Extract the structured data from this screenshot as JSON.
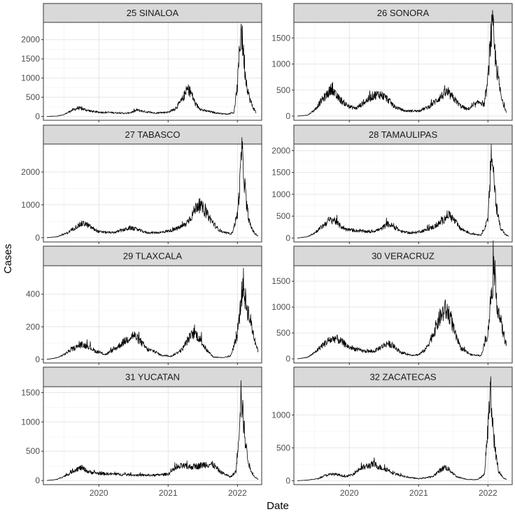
{
  "chart_data": {
    "type": "line",
    "xlabel": "Date",
    "ylabel": "Cases",
    "x_ticks": [
      {
        "label": "2020",
        "value": 2020.0
      },
      {
        "label": "2021",
        "value": 2021.0
      },
      {
        "label": "2022",
        "value": 2022.0
      }
    ],
    "xlim": [
      2019.2,
      2022.35
    ],
    "grid": true,
    "panels": [
      {
        "title": "25 SINALOA",
        "ylim": [
          -100,
          2450
        ],
        "yticks": [
          0,
          500,
          1000,
          1500,
          2000
        ],
        "points": [
          [
            2019.25,
            0
          ],
          [
            2019.4,
            10
          ],
          [
            2019.5,
            50
          ],
          [
            2019.6,
            150
          ],
          [
            2019.7,
            220
          ],
          [
            2019.8,
            180
          ],
          [
            2019.9,
            130
          ],
          [
            2020.0,
            110
          ],
          [
            2020.2,
            100
          ],
          [
            2020.4,
            80
          ],
          [
            2020.5,
            120
          ],
          [
            2020.55,
            170
          ],
          [
            2020.65,
            130
          ],
          [
            2020.8,
            90
          ],
          [
            2021.0,
            110
          ],
          [
            2021.1,
            200
          ],
          [
            2021.2,
            420
          ],
          [
            2021.28,
            720
          ],
          [
            2021.33,
            620
          ],
          [
            2021.4,
            300
          ],
          [
            2021.5,
            160
          ],
          [
            2021.7,
            90
          ],
          [
            2021.85,
            60
          ],
          [
            2021.95,
            100
          ],
          [
            2022.0,
            800
          ],
          [
            2022.03,
            1700
          ],
          [
            2022.05,
            2350
          ],
          [
            2022.08,
            1800
          ],
          [
            2022.12,
            1000
          ],
          [
            2022.17,
            500
          ],
          [
            2022.22,
            250
          ],
          [
            2022.27,
            100
          ]
        ]
      },
      {
        "title": "26 SONORA",
        "ylim": [
          -80,
          1800
        ],
        "yticks": [
          0,
          500,
          1000,
          1500
        ],
        "points": [
          [
            2019.25,
            0
          ],
          [
            2019.4,
            20
          ],
          [
            2019.5,
            120
          ],
          [
            2019.6,
            300
          ],
          [
            2019.7,
            450
          ],
          [
            2019.75,
            550
          ],
          [
            2019.8,
            400
          ],
          [
            2019.9,
            280
          ],
          [
            2020.0,
            180
          ],
          [
            2020.1,
            150
          ],
          [
            2020.2,
            250
          ],
          [
            2020.35,
            400
          ],
          [
            2020.45,
            420
          ],
          [
            2020.55,
            330
          ],
          [
            2020.65,
            180
          ],
          [
            2020.8,
            100
          ],
          [
            2021.0,
            100
          ],
          [
            2021.15,
            180
          ],
          [
            2021.3,
            350
          ],
          [
            2021.4,
            460
          ],
          [
            2021.5,
            350
          ],
          [
            2021.6,
            200
          ],
          [
            2021.7,
            130
          ],
          [
            2021.8,
            200
          ],
          [
            2021.88,
            280
          ],
          [
            2021.95,
            220
          ],
          [
            2022.0,
            700
          ],
          [
            2022.04,
            1500
          ],
          [
            2022.07,
            1700
          ],
          [
            2022.1,
            1200
          ],
          [
            2022.15,
            700
          ],
          [
            2022.2,
            300
          ],
          [
            2022.27,
            80
          ]
        ]
      },
      {
        "title": "27 TABASCO",
        "ylim": [
          -130,
          2850
        ],
        "yticks": [
          0,
          1000,
          2000
        ],
        "points": [
          [
            2019.25,
            0
          ],
          [
            2019.4,
            30
          ],
          [
            2019.55,
            150
          ],
          [
            2019.65,
            300
          ],
          [
            2019.75,
            420
          ],
          [
            2019.8,
            430
          ],
          [
            2019.9,
            300
          ],
          [
            2020.0,
            180
          ],
          [
            2020.2,
            150
          ],
          [
            2020.35,
            230
          ],
          [
            2020.45,
            300
          ],
          [
            2020.55,
            250
          ],
          [
            2020.7,
            150
          ],
          [
            2020.9,
            160
          ],
          [
            2021.1,
            250
          ],
          [
            2021.25,
            400
          ],
          [
            2021.35,
            700
          ],
          [
            2021.42,
            1000
          ],
          [
            2021.5,
            900
          ],
          [
            2021.6,
            600
          ],
          [
            2021.7,
            300
          ],
          [
            2021.8,
            150
          ],
          [
            2021.92,
            120
          ],
          [
            2022.0,
            700
          ],
          [
            2022.04,
            1800
          ],
          [
            2022.06,
            2700
          ],
          [
            2022.09,
            2000
          ],
          [
            2022.13,
            1000
          ],
          [
            2022.18,
            400
          ],
          [
            2022.25,
            120
          ],
          [
            2022.3,
            50
          ]
        ]
      },
      {
        "title": "28 TAMAULIPAS",
        "ylim": [
          -90,
          2150
        ],
        "yticks": [
          0,
          500,
          1000,
          1500,
          2000
        ],
        "points": [
          [
            2019.25,
            0
          ],
          [
            2019.4,
            30
          ],
          [
            2019.5,
            120
          ],
          [
            2019.6,
            250
          ],
          [
            2019.7,
            400
          ],
          [
            2019.78,
            420
          ],
          [
            2019.85,
            300
          ],
          [
            2019.95,
            200
          ],
          [
            2020.1,
            170
          ],
          [
            2020.3,
            140
          ],
          [
            2020.45,
            200
          ],
          [
            2020.55,
            320
          ],
          [
            2020.62,
            280
          ],
          [
            2020.75,
            150
          ],
          [
            2020.9,
            110
          ],
          [
            2021.1,
            180
          ],
          [
            2021.25,
            280
          ],
          [
            2021.35,
            400
          ],
          [
            2021.43,
            550
          ],
          [
            2021.5,
            430
          ],
          [
            2021.6,
            220
          ],
          [
            2021.75,
            100
          ],
          [
            2021.9,
            70
          ],
          [
            2022.0,
            400
          ],
          [
            2022.03,
            1300
          ],
          [
            2022.05,
            2000
          ],
          [
            2022.08,
            1500
          ],
          [
            2022.12,
            700
          ],
          [
            2022.18,
            250
          ],
          [
            2022.25,
            80
          ],
          [
            2022.3,
            40
          ]
        ]
      },
      {
        "title": "29 TLAXCALA",
        "ylim": [
          -22,
          575
        ],
        "yticks": [
          0,
          200,
          400
        ],
        "points": [
          [
            2019.25,
            0
          ],
          [
            2019.4,
            10
          ],
          [
            2019.5,
            30
          ],
          [
            2019.6,
            60
          ],
          [
            2019.75,
            90
          ],
          [
            2019.85,
            80
          ],
          [
            2019.95,
            50
          ],
          [
            2020.1,
            30
          ],
          [
            2020.25,
            70
          ],
          [
            2020.4,
            120
          ],
          [
            2020.5,
            150
          ],
          [
            2020.6,
            110
          ],
          [
            2020.7,
            60
          ],
          [
            2020.8,
            50
          ],
          [
            2020.9,
            25
          ],
          [
            2021.05,
            20
          ],
          [
            2021.2,
            60
          ],
          [
            2021.3,
            130
          ],
          [
            2021.38,
            165
          ],
          [
            2021.45,
            130
          ],
          [
            2021.55,
            60
          ],
          [
            2021.65,
            15
          ],
          [
            2021.8,
            10
          ],
          [
            2021.9,
            20
          ],
          [
            2022.0,
            150
          ],
          [
            2022.05,
            350
          ],
          [
            2022.08,
            480
          ],
          [
            2022.12,
            350
          ],
          [
            2022.18,
            250
          ],
          [
            2022.25,
            120
          ],
          [
            2022.3,
            50
          ]
        ]
      },
      {
        "title": "30 VERACRUZ",
        "ylim": [
          -80,
          1800
        ],
        "yticks": [
          0,
          500,
          1000,
          1500
        ],
        "points": [
          [
            2019.25,
            0
          ],
          [
            2019.4,
            30
          ],
          [
            2019.5,
            120
          ],
          [
            2019.6,
            250
          ],
          [
            2019.7,
            350
          ],
          [
            2019.8,
            400
          ],
          [
            2019.9,
            320
          ],
          [
            2020.0,
            220
          ],
          [
            2020.2,
            150
          ],
          [
            2020.35,
            140
          ],
          [
            2020.45,
            220
          ],
          [
            2020.55,
            300
          ],
          [
            2020.62,
            260
          ],
          [
            2020.75,
            120
          ],
          [
            2020.9,
            70
          ],
          [
            2021.0,
            80
          ],
          [
            2021.1,
            180
          ],
          [
            2021.2,
            450
          ],
          [
            2021.3,
            780
          ],
          [
            2021.38,
            950
          ],
          [
            2021.45,
            850
          ],
          [
            2021.52,
            500
          ],
          [
            2021.6,
            220
          ],
          [
            2021.75,
            80
          ],
          [
            2021.9,
            60
          ],
          [
            2022.0,
            500
          ],
          [
            2022.05,
            1300
          ],
          [
            2022.08,
            1650
          ],
          [
            2022.12,
            1200
          ],
          [
            2022.17,
            800
          ],
          [
            2022.22,
            500
          ],
          [
            2022.27,
            250
          ]
        ]
      },
      {
        "title": "31 YUCATAN",
        "ylim": [
          -70,
          1600
        ],
        "yticks": [
          0,
          500,
          1000,
          1500
        ],
        "points": [
          [
            2019.25,
            0
          ],
          [
            2019.4,
            20
          ],
          [
            2019.55,
            100
          ],
          [
            2019.65,
            180
          ],
          [
            2019.75,
            220
          ],
          [
            2019.85,
            150
          ],
          [
            2020.0,
            120
          ],
          [
            2020.2,
            110
          ],
          [
            2020.4,
            100
          ],
          [
            2020.6,
            90
          ],
          [
            2020.8,
            90
          ],
          [
            2021.0,
            110
          ],
          [
            2021.1,
            200
          ],
          [
            2021.2,
            250
          ],
          [
            2021.3,
            230
          ],
          [
            2021.45,
            250
          ],
          [
            2021.55,
            280
          ],
          [
            2021.65,
            270
          ],
          [
            2021.75,
            150
          ],
          [
            2021.9,
            60
          ],
          [
            2021.98,
            150
          ],
          [
            2022.02,
            800
          ],
          [
            2022.05,
            1500
          ],
          [
            2022.08,
            1100
          ],
          [
            2022.12,
            600
          ],
          [
            2022.18,
            200
          ],
          [
            2022.25,
            60
          ],
          [
            2022.3,
            20
          ]
        ]
      },
      {
        "title": "32 ZACATECAS",
        "ylim": [
          -60,
          1430
        ],
        "yticks": [
          0,
          500,
          1000
        ],
        "points": [
          [
            2019.25,
            0
          ],
          [
            2019.4,
            10
          ],
          [
            2019.55,
            30
          ],
          [
            2019.65,
            80
          ],
          [
            2019.75,
            100
          ],
          [
            2019.85,
            90
          ],
          [
            2019.95,
            60
          ],
          [
            2020.05,
            100
          ],
          [
            2020.15,
            180
          ],
          [
            2020.25,
            220
          ],
          [
            2020.35,
            250
          ],
          [
            2020.45,
            200
          ],
          [
            2020.55,
            170
          ],
          [
            2020.65,
            110
          ],
          [
            2020.8,
            60
          ],
          [
            2021.0,
            30
          ],
          [
            2021.2,
            60
          ],
          [
            2021.3,
            150
          ],
          [
            2021.38,
            210
          ],
          [
            2021.45,
            160
          ],
          [
            2021.55,
            60
          ],
          [
            2021.7,
            20
          ],
          [
            2021.85,
            15
          ],
          [
            2021.95,
            100
          ],
          [
            2022.0,
            800
          ],
          [
            2022.03,
            1300
          ],
          [
            2022.06,
            1000
          ],
          [
            2022.1,
            500
          ],
          [
            2022.15,
            150
          ],
          [
            2022.22,
            40
          ],
          [
            2022.27,
            20
          ]
        ]
      }
    ]
  }
}
